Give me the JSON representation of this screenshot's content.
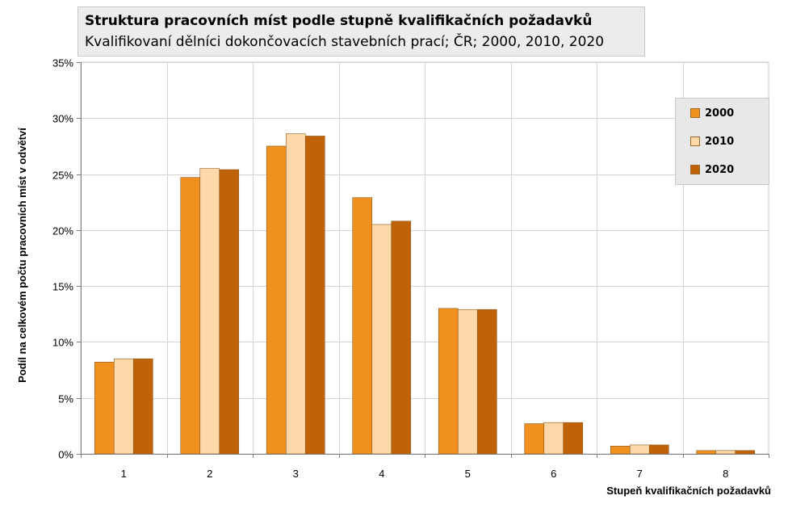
{
  "chart_data": {
    "type": "bar",
    "title": "Struktura pracovních míst podle stupně kvalifikačních požadavků",
    "subtitle": "Kvalifikovaní dělníci dokončovacích stavebních prací; ČR; 2000, 2010, 2020",
    "xlabel": "Stupeň kvalifikačních požadavků",
    "ylabel": "Podíl na celkovém počtu pracovních míst v odvětví",
    "categories": [
      "1",
      "2",
      "3",
      "4",
      "5",
      "6",
      "7",
      "8"
    ],
    "ylim": [
      0,
      35
    ],
    "y_ticks": [
      0,
      5,
      10,
      15,
      20,
      25,
      30,
      35
    ],
    "y_tick_labels": [
      "0%",
      "5%",
      "10%",
      "15%",
      "20%",
      "25%",
      "30%",
      "35%"
    ],
    "grid": true,
    "legend_position": "right",
    "series": [
      {
        "name": "2000",
        "color": "#f0901e",
        "values": [
          8.2,
          24.7,
          27.5,
          22.9,
          13.0,
          2.7,
          0.7,
          0.3
        ]
      },
      {
        "name": "2010",
        "color": "#fdd8a8",
        "values": [
          8.5,
          25.5,
          28.6,
          20.5,
          12.9,
          2.8,
          0.8,
          0.3
        ]
      },
      {
        "name": "2020",
        "color": "#c06208",
        "values": [
          8.5,
          25.4,
          28.4,
          20.8,
          12.9,
          2.8,
          0.8,
          0.3
        ]
      }
    ]
  }
}
